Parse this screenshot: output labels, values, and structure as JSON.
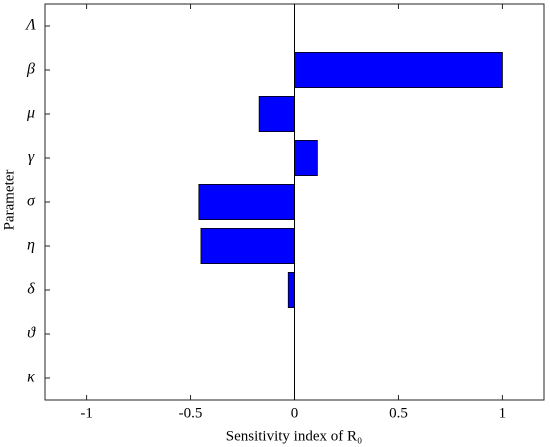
{
  "chart_data": {
    "type": "hbar",
    "categories": [
      "Λ",
      "β",
      "μ",
      "γ",
      "σ",
      "η",
      "δ",
      "ϑ",
      "κ"
    ],
    "values": [
      0,
      1.0,
      -0.17,
      0.11,
      -0.46,
      -0.45,
      -0.03,
      0,
      0
    ],
    "color": "#0000ff",
    "xlim": [
      -1.2,
      1.2
    ],
    "xticks": [
      -1,
      -0.5,
      0,
      0.5,
      1
    ],
    "xlabel": "Sensitivity index of R₀",
    "ylabel": "Parameter",
    "grid": false
  }
}
